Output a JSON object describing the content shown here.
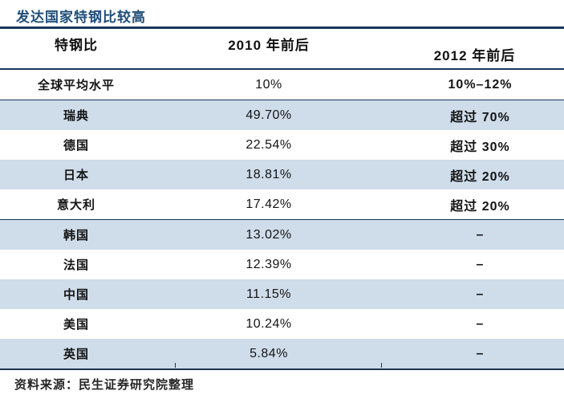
{
  "title": "发达国家特钢比较高",
  "source": "资料来源：民生证券研究院整理",
  "table": {
    "headers": [
      "特钢比",
      "2010 年前后",
      "2012 年前后"
    ],
    "rows": [
      [
        "全球平均水平",
        "10%",
        "10%–12%"
      ],
      [
        "瑞典",
        "49.70%",
        "超过 70%"
      ],
      [
        "德国",
        "22.54%",
        "超过 30%"
      ],
      [
        "日本",
        "18.81%",
        "超过 20%"
      ],
      [
        "意大利",
        "17.42%",
        "超过 20%"
      ],
      [
        "韩国",
        "13.02%",
        "–"
      ],
      [
        "法国",
        "12.39%",
        "–"
      ],
      [
        "中国",
        "11.15%",
        "–"
      ],
      [
        "美国",
        "10.24%",
        "–"
      ],
      [
        "英国",
        "5.84%",
        "–"
      ]
    ]
  },
  "chart_data": {
    "type": "table",
    "title": "发达国家特钢比较高",
    "columns": [
      "特钢比",
      "2010 年前后",
      "2012 年前后"
    ],
    "rows": [
      {
        "entity": "全球平均水平",
        "around_2010": "10%",
        "around_2012": "10%–12%"
      },
      {
        "entity": "瑞典",
        "around_2010": "49.70%",
        "around_2012": "超过 70%"
      },
      {
        "entity": "德国",
        "around_2010": "22.54%",
        "around_2012": "超过 30%"
      },
      {
        "entity": "日本",
        "around_2010": "18.81%",
        "around_2012": "超过 20%"
      },
      {
        "entity": "意大利",
        "around_2010": "17.42%",
        "around_2012": "超过 20%"
      },
      {
        "entity": "韩国",
        "around_2010": "13.02%",
        "around_2012": "–"
      },
      {
        "entity": "法国",
        "around_2010": "12.39%",
        "around_2012": "–"
      },
      {
        "entity": "中国",
        "around_2010": "11.15%",
        "around_2012": "–"
      },
      {
        "entity": "美国",
        "around_2010": "10.24%",
        "around_2012": "–"
      },
      {
        "entity": "英国",
        "around_2010": "5.84%",
        "around_2012": "–"
      }
    ],
    "values_2010_numeric_pct": [
      10,
      49.7,
      22.54,
      18.81,
      17.42,
      13.02,
      12.39,
      11.15,
      10.24,
      5.84
    ],
    "source": "资料来源：民生证券研究院整理"
  },
  "colors": {
    "line_navy": "#17375E",
    "title_blue": "#1F4E79",
    "row_shade": "#CFDCEA",
    "text": "#141414"
  }
}
